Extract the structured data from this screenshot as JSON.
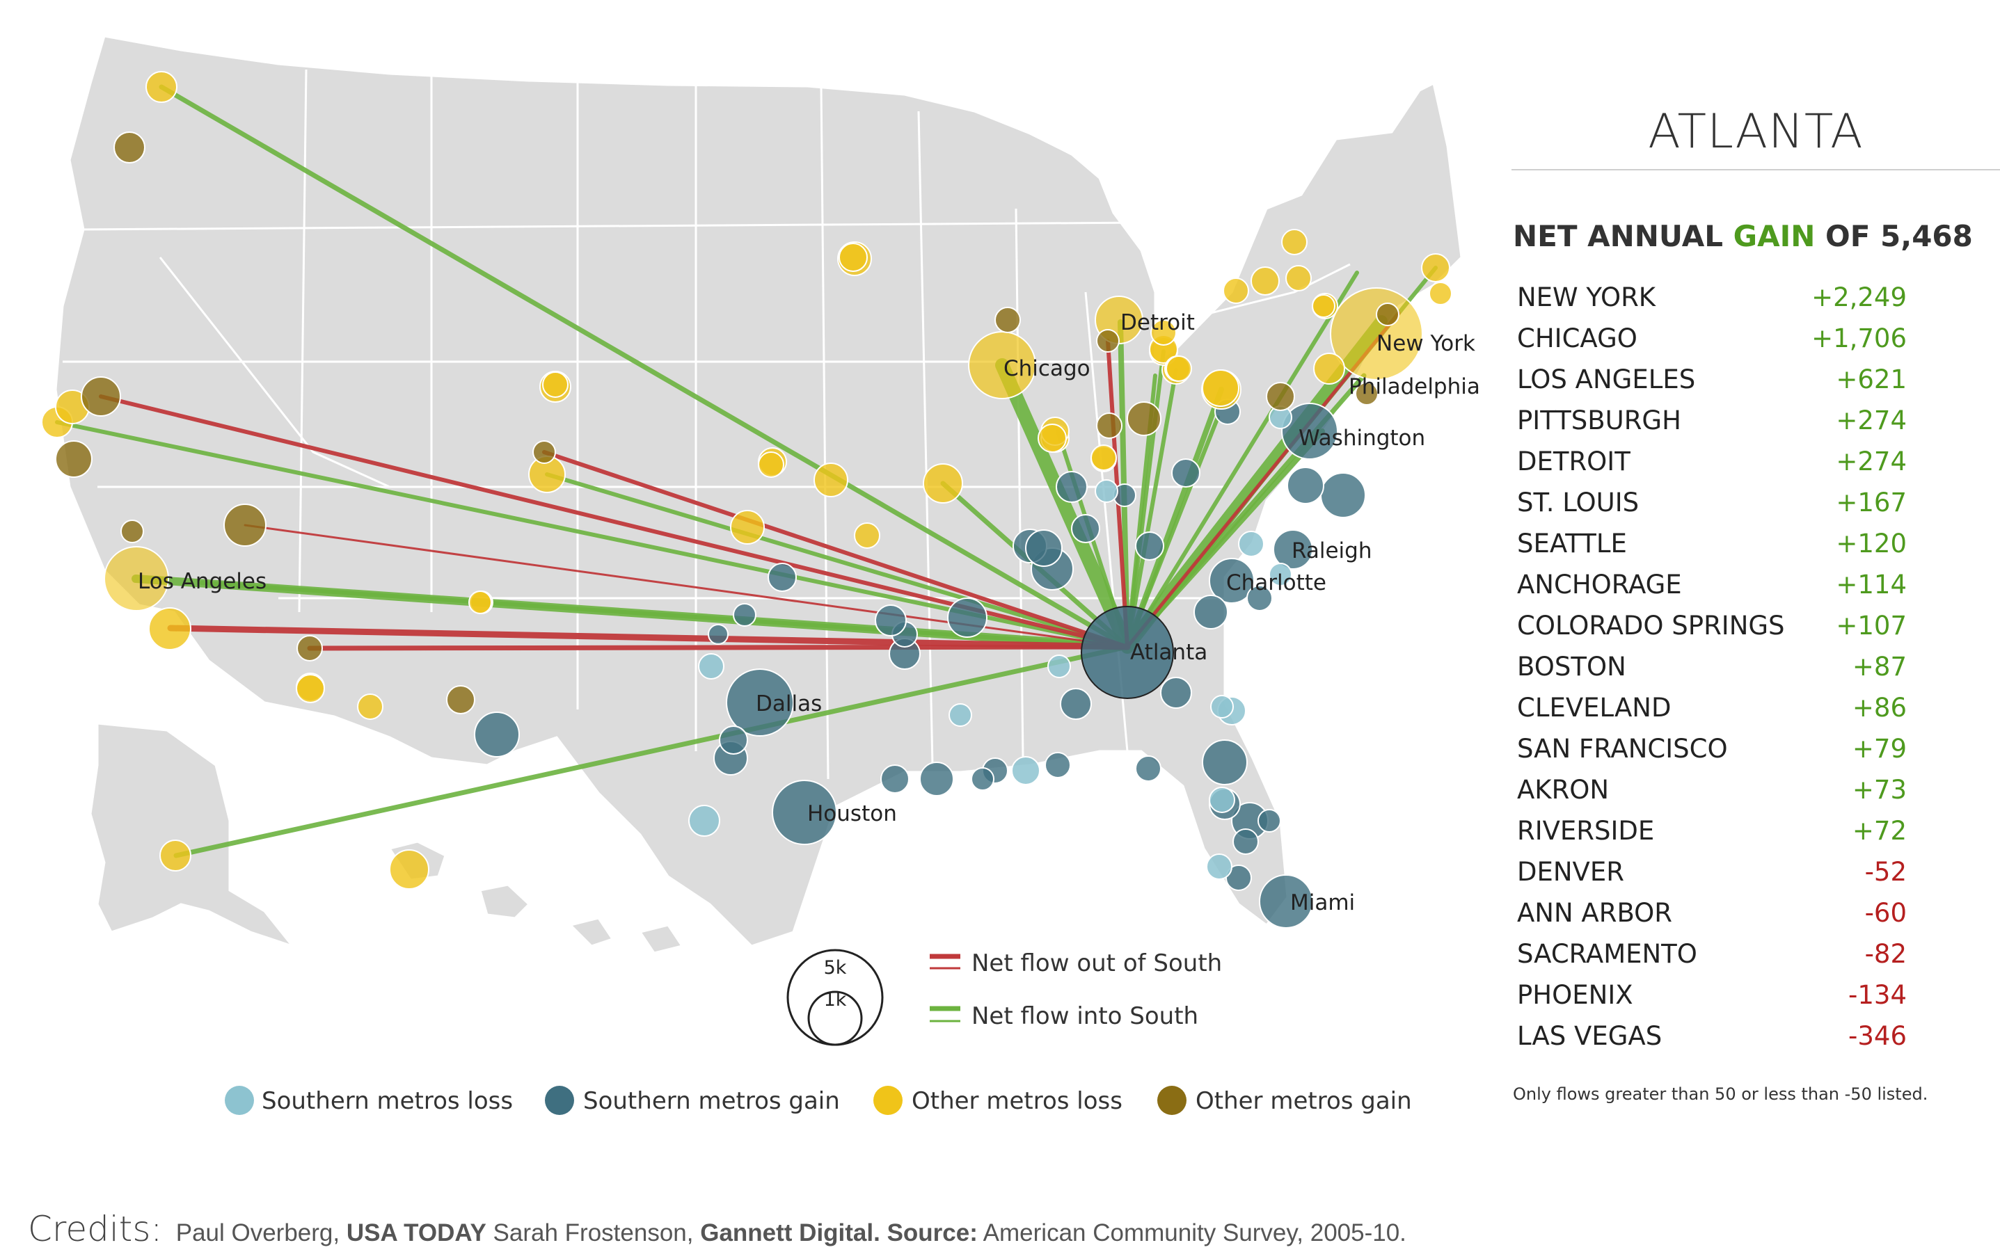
{
  "panel": {
    "title": "ATLANTA",
    "headline_prefix": "NET ANNUAL ",
    "headline_gain": "GAIN",
    "headline_suffix": " OF 5,468",
    "flows": [
      {
        "name": "NEW YORK",
        "value": "+2,249"
      },
      {
        "name": "CHICAGO",
        "value": "+1,706"
      },
      {
        "name": "LOS ANGELES",
        "value": "+621"
      },
      {
        "name": "PITTSBURGH",
        "value": "+274"
      },
      {
        "name": "DETROIT",
        "value": "+274"
      },
      {
        "name": "ST. LOUIS",
        "value": "+167"
      },
      {
        "name": "SEATTLE",
        "value": "+120"
      },
      {
        "name": "ANCHORAGE",
        "value": "+114"
      },
      {
        "name": "COLORADO SPRINGS",
        "value": "+107"
      },
      {
        "name": "BOSTON",
        "value": "+87"
      },
      {
        "name": "CLEVELAND",
        "value": "+86"
      },
      {
        "name": "SAN FRANCISCO",
        "value": "+79"
      },
      {
        "name": "AKRON",
        "value": "+73"
      },
      {
        "name": "RIVERSIDE",
        "value": "+72"
      },
      {
        "name": "DENVER",
        "value": "-52"
      },
      {
        "name": "ANN ARBOR",
        "value": "-60"
      },
      {
        "name": "SACRAMENTO",
        "value": "-82"
      },
      {
        "name": "PHOENIX",
        "value": "-134"
      },
      {
        "name": "LAS VEGAS",
        "value": "-346"
      }
    ],
    "footnote": "Only flows greater than 50 or less than -50 listed."
  },
  "map": {
    "city_labels": {
      "detroit": "Detroit",
      "chicago": "Chicago",
      "new_york": "New York",
      "philadelphia": "Philadelphia",
      "washington": "Washington",
      "raleigh": "Raleigh",
      "charlotte": "Charlotte",
      "atlanta": "Atlanta",
      "los_angeles": "Los Angeles",
      "dallas": "Dallas",
      "houston": "Houston",
      "miami": "Miami"
    },
    "scale": {
      "large": "5k",
      "small": "1k"
    }
  },
  "legend": {
    "flow_out": "Net flow out of South",
    "flow_in": "Net flow into South",
    "southern_loss": "Southern metros loss",
    "southern_gain": "Southern metros gain",
    "other_loss": "Other metros loss",
    "other_gain": "Other metros gain"
  },
  "colors": {
    "flow_out": "#c0393b",
    "flow_in": "#6cb33f",
    "southern_loss": "#8dc3d0",
    "southern_gain": "#3f6f80",
    "other_loss": "#f0c419",
    "other_gain": "#8a6d14",
    "positive_text": "#4e9a1e",
    "negative_text": "#b51f1f"
  },
  "credits": {
    "label": "Credits:",
    "author1": "Paul Overberg, ",
    "org1": "USA TODAY",
    "author2": " Sarah Frostenson, ",
    "org2": "Gannett Digital",
    "source_label": ". Source:",
    "source_text": " American Community Survey, 2005-10."
  }
}
